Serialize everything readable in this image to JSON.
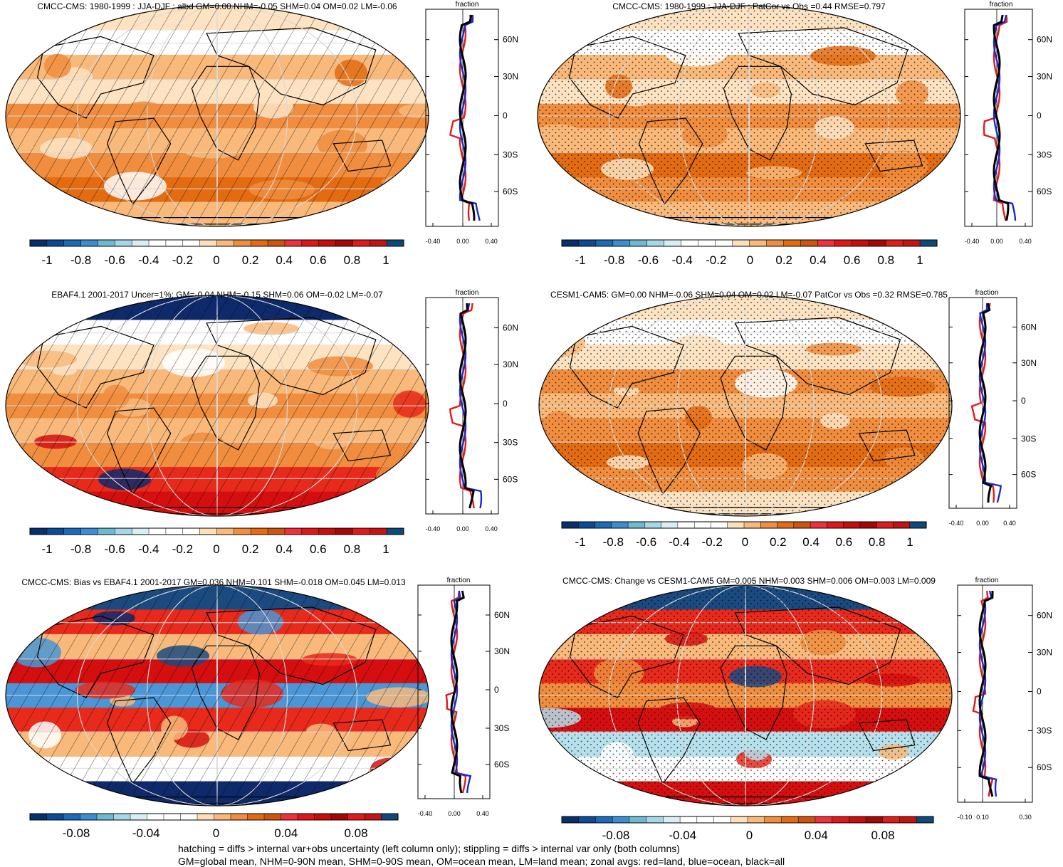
{
  "palettes": {
    "diverging": [
      "#0a2a6b",
      "#0e4a9a",
      "#1f6fc0",
      "#4a96d6",
      "#79c0d6",
      "#b5e0ec",
      "#dff3f6",
      "#ffffff",
      "#ffffff",
      "#fde3c2",
      "#f8b97a",
      "#f08d3e",
      "#e36b12",
      "#d14a10",
      "#e82a1c",
      "#d50f0f",
      "#b40a0a",
      "#8c0707",
      "#d11919",
      "#e02020",
      "#b01010",
      "#1a4a80"
    ]
  },
  "panels": [
    {
      "title": "CMCC-CMS: 1980-1999 : JJA-DJF : albd GM=0.00 NHM=-0.05 SHM=0.04 OM=0.02 LM=-0.06",
      "pattern": "hatch",
      "colorbar_labels": [
        "-1",
        "-0.8",
        "-0.6",
        "-0.4",
        "-0.2",
        "0",
        "0.2",
        "0.4",
        "0.6",
        "0.8",
        "1"
      ],
      "profile_axis_title": "fraction",
      "profile_x_labels": [
        "-0.40",
        "0.00",
        "0.40"
      ],
      "profile_lat_labels": [
        "60N",
        "30N",
        "0",
        "30S",
        "60S"
      ]
    },
    {
      "title": "CMCC-CMS: 1980-1999 : JJA-DJF : PatCor vs Obs =0.44 RMSE=0.797",
      "pattern": "stipple",
      "colorbar_labels": [
        "-1",
        "-0.8",
        "-0.6",
        "-0.4",
        "-0.2",
        "0",
        "0.2",
        "0.4",
        "0.6",
        "0.8",
        "1"
      ],
      "profile_axis_title": "fraction",
      "profile_x_labels": [
        "-0.40",
        "0.00",
        "0.40"
      ],
      "profile_lat_labels": [
        "60N",
        "30N",
        "0",
        "30S",
        "60S"
      ]
    },
    {
      "title": "EBAF4.1 2001-2017 Uncer=1%: GM=-0.04 NHM=-0.15 SHM=0.06 OM=-0.02 LM=-0.07",
      "pattern": "hatch",
      "colorbar_labels": [
        "-1",
        "-0.8",
        "-0.6",
        "-0.4",
        "-0.2",
        "0",
        "0.2",
        "0.4",
        "0.6",
        "0.8",
        "1"
      ],
      "profile_axis_title": "fraction",
      "profile_x_labels": [
        "-0.40",
        "0.00",
        "0.40"
      ],
      "profile_lat_labels": [
        "60N",
        "30N",
        "0",
        "30S",
        "60S"
      ]
    },
    {
      "title": "CESM1-CAM5: GM=0.00 NHM=-0.06 SHM=0.04 OM=0.02 LM=-0.07 PatCor vs Obs =0.32 RMSE=0.785",
      "pattern": "stipple",
      "colorbar_labels": [
        "-1",
        "-0.8",
        "-0.6",
        "-0.4",
        "-0.2",
        "0",
        "0.2",
        "0.4",
        "0.6",
        "0.8",
        "1"
      ],
      "profile_axis_title": "fraction",
      "profile_x_labels": [
        "-0.40",
        "0.00",
        "0.40"
      ],
      "profile_lat_labels": [
        "60N",
        "30N",
        "0",
        "30S",
        "60S"
      ]
    },
    {
      "title": "CMCC-CMS: Bias vs EBAF4.1 2001-2017 GM=0.036 NHM=0.101 SHM=-0.018 OM=0.045 LM=0.013",
      "pattern": "hatch",
      "colorbar_labels": [
        "-0.08",
        "-0.04",
        "0",
        "0.04",
        "0.08"
      ],
      "profile_axis_title": "fraction",
      "profile_x_labels": [
        "-0.40",
        "0.00",
        "0.40"
      ],
      "profile_lat_labels": [
        "60N",
        "30N",
        "0",
        "30S",
        "60S"
      ]
    },
    {
      "title": "CMCC-CMS: Change vs CESM1-CAM5 GM=0.005 NHM=0.003 SHM=0.006 OM=0.003 LM=0.009",
      "pattern": "stipple",
      "colorbar_labels": [
        "-0.08",
        "-0.04",
        "0",
        "0.04",
        "0.08"
      ],
      "profile_axis_title": "fraction",
      "profile_x_labels": [
        "-0.10",
        "0.10",
        "0.30"
      ],
      "profile_lat_labels": [
        "60N",
        "30N",
        "0",
        "30S",
        "60S"
      ]
    }
  ],
  "footer": {
    "line1": "hatching = diffs > internal var+obs uncertainty (left column only); stippling = diffs > internal var only (both columns)",
    "line2": "GM=global mean, NHM=0-90N mean, SHM=0-90S mean, OM=ocean mean, LM=land mean; zonal avgs: red=land, blue=ocean, black=all"
  }
}
